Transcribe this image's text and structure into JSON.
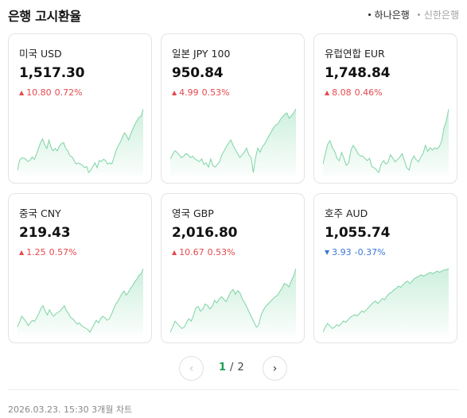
{
  "header": {
    "title": "은행 고시환율",
    "banks": [
      {
        "label": "하나은행",
        "active": true
      },
      {
        "label": "신한은행",
        "active": false
      }
    ]
  },
  "cards": [
    {
      "name": "미국 USD",
      "rate": "1,517.30",
      "direction": "up",
      "change": "10.80",
      "pct": "0.72%",
      "chart_data": {
        "type": "area",
        "values": [
          22,
          30,
          32,
          32,
          31,
          29,
          30,
          33,
          31,
          35,
          40,
          45,
          48,
          43,
          40,
          47,
          41,
          38,
          40,
          38,
          42,
          44,
          45,
          40,
          38,
          34,
          33,
          30,
          27,
          28,
          27,
          26,
          24,
          25,
          20,
          22,
          25,
          28,
          24,
          30,
          29,
          31,
          30,
          27,
          28,
          27,
          32,
          38,
          42,
          45,
          49,
          53,
          51,
          47,
          52,
          56,
          60,
          63,
          66,
          67,
          73
        ]
      }
    },
    {
      "name": "일본 JPY 100",
      "rate": "950.84",
      "direction": "up",
      "change": "4.99",
      "pct": "0.53%",
      "chart_data": {
        "type": "area",
        "values": [
          32,
          35,
          38,
          37,
          35,
          33,
          34,
          36,
          35,
          33,
          34,
          32,
          31,
          30,
          32,
          28,
          29,
          26,
          32,
          27,
          26,
          28,
          30,
          35,
          38,
          41,
          44,
          46,
          42,
          39,
          36,
          33,
          35,
          37,
          40,
          35,
          33,
          22,
          33,
          40,
          37,
          41,
          43,
          46,
          49,
          52,
          55,
          57,
          58,
          61,
          63,
          65,
          66,
          62,
          64,
          66,
          69
        ]
      }
    },
    {
      "name": "유럽연합 EUR",
      "rate": "1,748.84",
      "direction": "up",
      "change": "8.08",
      "pct": "0.46%",
      "chart_data": {
        "type": "area",
        "values": [
          31,
          40,
          48,
          51,
          45,
          42,
          36,
          34,
          41,
          36,
          30,
          32,
          43,
          47,
          44,
          40,
          38,
          38,
          36,
          34,
          36,
          29,
          28,
          26,
          24,
          31,
          34,
          31,
          33,
          39,
          36,
          33,
          35,
          37,
          40,
          34,
          28,
          26,
          34,
          38,
          35,
          33,
          37,
          40,
          47,
          42,
          45,
          43,
          45,
          44,
          46,
          51,
          62,
          68,
          78
        ]
      }
    },
    {
      "name": "중국 CNY",
      "rate": "219.43",
      "direction": "up",
      "change": "1.25",
      "pct": "0.57%",
      "chart_data": {
        "type": "area",
        "values": [
          26,
          30,
          34,
          32,
          30,
          27,
          29,
          31,
          30,
          33,
          36,
          40,
          42,
          38,
          35,
          39,
          36,
          34,
          36,
          37,
          38,
          40,
          42,
          38,
          36,
          33,
          32,
          30,
          28,
          29,
          27,
          26,
          25,
          24,
          22,
          25,
          28,
          31,
          29,
          32,
          34,
          33,
          31,
          32,
          35,
          39,
          43,
          45,
          48,
          51,
          53,
          50,
          52,
          55,
          57,
          60,
          62,
          65,
          66,
          70
        ]
      }
    },
    {
      "name": "영국 GBP",
      "rate": "2,016.80",
      "direction": "up",
      "change": "10.67",
      "pct": "0.53%",
      "chart_data": {
        "type": "area",
        "values": [
          24,
          28,
          33,
          31,
          29,
          27,
          28,
          32,
          35,
          33,
          38,
          44,
          45,
          41,
          43,
          47,
          46,
          43,
          45,
          50,
          48,
          51,
          53,
          51,
          49,
          53,
          57,
          59,
          55,
          58,
          56,
          51,
          48,
          44,
          40,
          36,
          32,
          28,
          30,
          38,
          42,
          45,
          47,
          49,
          51,
          53,
          54,
          57,
          60,
          64,
          63,
          61,
          66,
          70,
          76
        ]
      }
    },
    {
      "name": "호주 AUD",
      "rate": "1,055.74",
      "direction": "down",
      "change": "3.93",
      "pct": "-0.37%",
      "chart_data": {
        "type": "area",
        "values": [
          20,
          24,
          27,
          25,
          23,
          24,
          26,
          25,
          27,
          29,
          28,
          30,
          32,
          33,
          34,
          33,
          35,
          37,
          36,
          38,
          40,
          42,
          44,
          45,
          43,
          45,
          47,
          46,
          49,
          51,
          52,
          54,
          55,
          57,
          56,
          58,
          60,
          61,
          59,
          61,
          63,
          64,
          65,
          66,
          65,
          66,
          67,
          68,
          67,
          68,
          69,
          68,
          69,
          70,
          70,
          71
        ]
      }
    }
  ],
  "pagination": {
    "prev_label": "‹",
    "next_label": "›",
    "current": "1",
    "separator": "/",
    "total": "2"
  },
  "footer": {
    "text": "2026.03.23. 15:30 3개월 차트"
  },
  "colors": {
    "up": "#e5484d",
    "down": "#3a78d4",
    "chart_line": "#7fd4a4",
    "chart_fill": "#1fb96a",
    "page_active": "#1e9e55"
  }
}
